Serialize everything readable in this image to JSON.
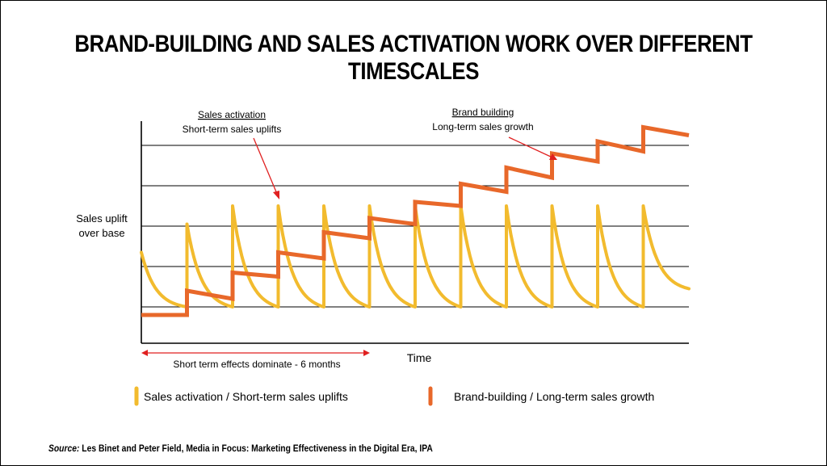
{
  "title": "BRAND-BUILDING AND SALES ACTIVATION WORK OVER DIFFERENT TIMESCALES",
  "source": {
    "label": "Source:",
    "text": " Les Binet and Peter Field, Media in Focus: Marketing Effectiveness in the Digital Era, IPA"
  },
  "colors": {
    "activation": "#F2BB2E",
    "brand": "#E8682A",
    "arrow": "#E02020",
    "grid": "#000000"
  },
  "chart_data": {
    "type": "line",
    "ylabel_lines": [
      "Sales uplift",
      "over base"
    ],
    "xlabel": "Time",
    "grid": true,
    "legend_position": "bottom",
    "legend": [
      {
        "name": "Sales activation / Short-term sales uplifts",
        "color": "#F2BB2E"
      },
      {
        "name": "Brand-building / Long-term sales growth",
        "color": "#E8682A"
      }
    ],
    "annotations": {
      "activation_title": "Sales activation",
      "activation_sub": "Short-term sales uplifts",
      "brand_title": "Brand building",
      "brand_sub": "Long-term sales growth",
      "short_term": "Short term effects dominate - 6 months"
    },
    "series": [
      {
        "name": "Sales activation / Short-term sales uplifts",
        "kind": "sawtooth",
        "start_level": 1.35,
        "cycles": 12,
        "first_peak": 2.05,
        "peak": 2.5,
        "trough": 0.0
      },
      {
        "name": "Brand-building / Long-term sales growth",
        "kind": "staircase",
        "steps": [
          {
            "from": -0.2,
            "to": -0.2
          },
          {
            "from": 0.4,
            "to": 0.2
          },
          {
            "from": 0.85,
            "to": 0.75
          },
          {
            "from": 1.35,
            "to": 1.2
          },
          {
            "from": 1.85,
            "to": 1.7
          },
          {
            "from": 2.2,
            "to": 2.05
          },
          {
            "from": 2.6,
            "to": 2.5
          },
          {
            "from": 3.05,
            "to": 2.85
          },
          {
            "from": 3.45,
            "to": 3.2
          },
          {
            "from": 3.8,
            "to": 3.6
          },
          {
            "from": 4.1,
            "to": 3.85
          },
          {
            "from": 4.45,
            "to": 4.25
          }
        ]
      }
    ],
    "ylim": [
      -0.7,
      4.5
    ],
    "gridlines": [
      0,
      1,
      2,
      3,
      4
    ]
  }
}
